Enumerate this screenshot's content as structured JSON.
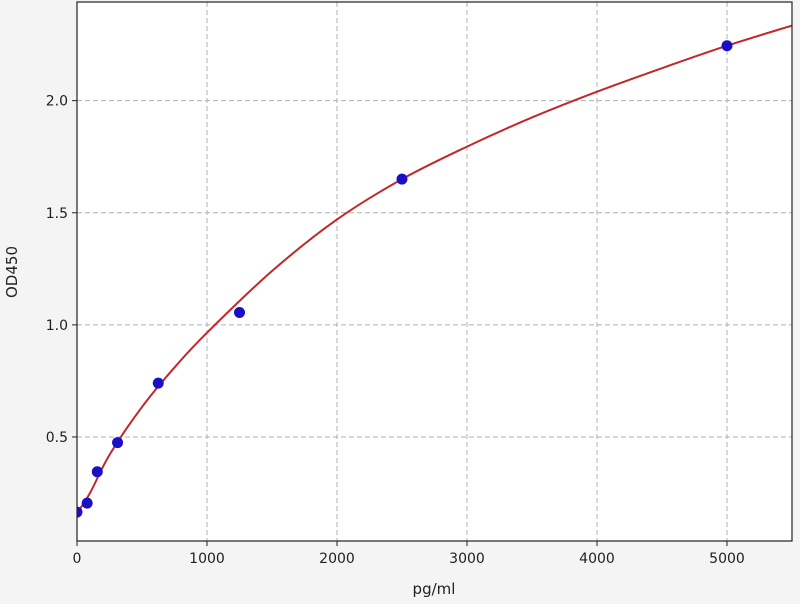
{
  "chart_data": {
    "type": "scatter",
    "title": "",
    "xlabel": "pg/ml",
    "ylabel": "OD450",
    "xlim": [
      0,
      5500
    ],
    "ylim": [
      0.036,
      2.44
    ],
    "xticks": [
      0,
      1000,
      2000,
      3000,
      4000,
      5000
    ],
    "yticks": [
      0.5,
      1.0,
      1.5,
      2.0
    ],
    "xtick_labels": [
      "0",
      "1000",
      "2000",
      "3000",
      "4000",
      "5000"
    ],
    "ytick_labels": [
      "0.5",
      "1.0",
      "1.5",
      "2.0"
    ],
    "grid": true,
    "series": [
      {
        "kind": "points",
        "color": "#1a0fc4",
        "x": [
          0,
          78,
          156,
          312,
          625,
          1250,
          2500,
          5000
        ],
        "y": [
          0.165,
          0.205,
          0.345,
          0.475,
          0.74,
          1.055,
          1.65,
          2.245
        ]
      },
      {
        "kind": "fit-curve",
        "color": "#c0282a",
        "x": [
          0,
          100,
          250,
          500,
          750,
          1000,
          1500,
          2000,
          2500,
          3000,
          3500,
          4000,
          4500,
          5000,
          5500
        ],
        "y": [
          0.16,
          0.25,
          0.42,
          0.634,
          0.81,
          0.965,
          1.24,
          1.47,
          1.65,
          1.795,
          1.925,
          2.04,
          2.145,
          2.245,
          2.335
        ]
      }
    ]
  }
}
